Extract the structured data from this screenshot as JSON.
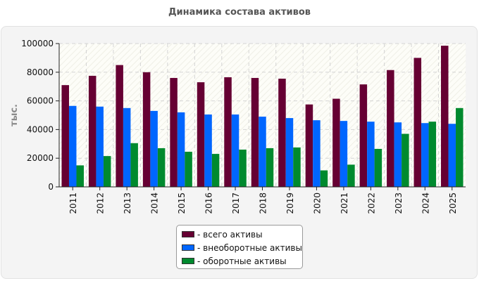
{
  "chart_data": {
    "type": "bar",
    "title": "Динамика состава активов",
    "ylabel": "тыс.",
    "xlabel": "",
    "ylim": [
      0,
      100000
    ],
    "yticks": [
      0,
      20000,
      40000,
      60000,
      80000,
      100000
    ],
    "grid": true,
    "legend_position": "bottom",
    "categories": [
      "2011",
      "2012",
      "2013",
      "2014",
      "2015",
      "2016",
      "2017",
      "2018",
      "2019",
      "2020",
      "2021",
      "2022",
      "2023",
      "2024",
      "2025"
    ],
    "series": [
      {
        "name": "- всего активы",
        "color": "#660033",
        "values": [
          71000,
          77500,
          85000,
          80000,
          76000,
          73000,
          76500,
          76000,
          75500,
          57500,
          61500,
          71500,
          81500,
          90000,
          98500
        ]
      },
      {
        "name": "- внеоборотные активы",
        "color": "#0066ff",
        "values": [
          56500,
          56000,
          55000,
          53000,
          52000,
          50500,
          50500,
          49000,
          48000,
          46500,
          46000,
          45500,
          45000,
          44500,
          44000
        ]
      },
      {
        "name": "- оборотные активы",
        "color": "#008a2e",
        "values": [
          15000,
          21500,
          30500,
          27000,
          24500,
          23000,
          26000,
          27000,
          27500,
          11500,
          15500,
          26500,
          37000,
          45500,
          55000
        ]
      }
    ]
  }
}
